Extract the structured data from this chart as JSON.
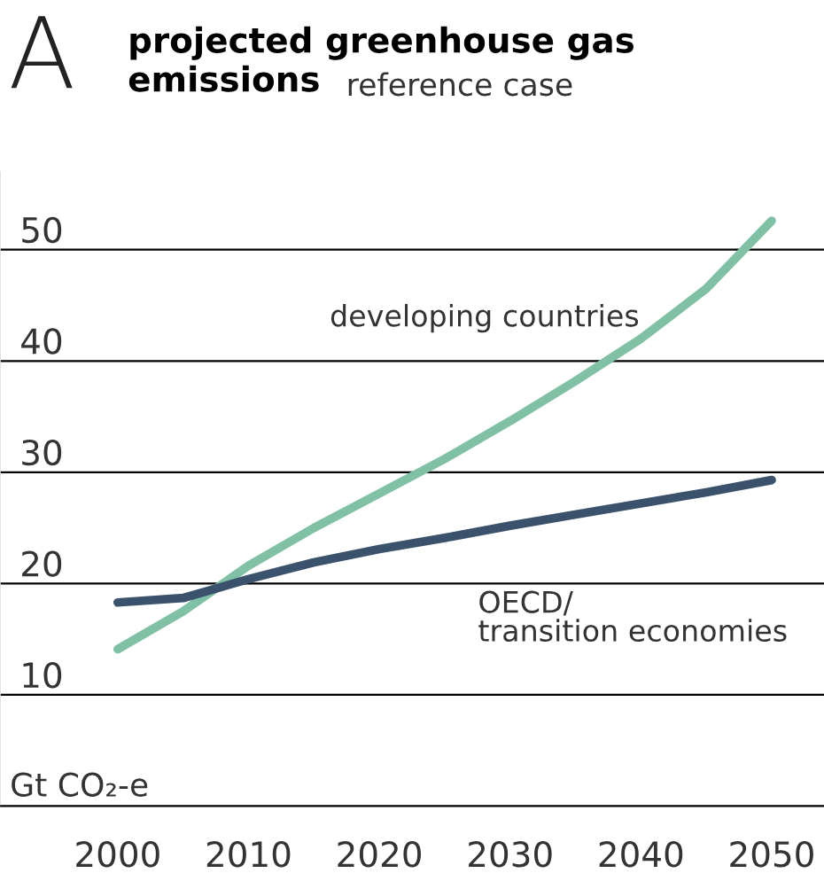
{
  "chart_data": {
    "type": "line",
    "title": "projected greenhouse gas emissions",
    "subtitle": "reference case",
    "ylabel": "Gt CO₂-e",
    "annotations": [
      "A",
      "developing countries",
      "OECD/\ntransition economies"
    ],
    "x": [
      2000,
      2005,
      2010,
      2015,
      2020,
      2025,
      2030,
      2035,
      2040,
      2045,
      2050
    ],
    "series": [
      {
        "color": "#80c1a6",
        "values": [
          14.1,
          17.5,
          21.6,
          25,
          28.1,
          31.2,
          34.6,
          38.2,
          42,
          46.5,
          52.6
        ]
      },
      {
        "color": "#3b526d",
        "values": [
          18.3,
          18.7,
          20.4,
          21.9,
          23.1,
          24.1,
          25.2,
          26.2,
          27.2,
          28.2,
          29.3
        ]
      }
    ],
    "xlim": [
      1991,
      2054
    ],
    "ylim": [
      0,
      57
    ],
    "xticks": [
      2000,
      2010,
      2020,
      2030,
      2040,
      2050
    ],
    "yticks": [
      {
        "value": 0,
        "label": null
      },
      10,
      20,
      30,
      40,
      50
    ],
    "grid": "y",
    "legend": false
  }
}
